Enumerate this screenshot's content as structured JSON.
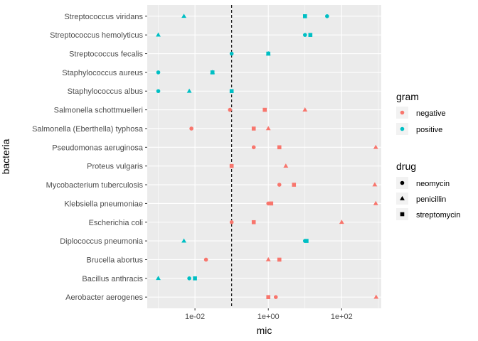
{
  "chart_data": {
    "type": "scatter",
    "title": "",
    "xlabel": "mic",
    "ylabel": "bacteria",
    "x_scale": "log10",
    "xlim": [
      0.0005,
      1200
    ],
    "x_ticks": [
      {
        "value": 0.01,
        "label": "1e-02"
      },
      {
        "value": 1,
        "label": "1e+00"
      },
      {
        "value": 100,
        "label": "1e+02"
      }
    ],
    "reference_line": {
      "x": 0.1,
      "style": "dashed"
    },
    "grid": true,
    "panel_color": "#ebebeb",
    "categories": [
      "Aerobacter aerogenes",
      "Bacillus anthracis",
      "Brucella abortus",
      "Diplococcus pneumonia",
      "Escherichia coli",
      "Klebsiella pneumoniae",
      "Mycobacterium tuberculosis",
      "Proteus vulgaris",
      "Pseudomonas aeruginosa",
      "Salmonella (Eberthella) typhosa",
      "Salmonella schottmuelleri",
      "Staphylococcus albus",
      "Staphylococcus aureus",
      "Streptococcus fecalis",
      "Streptococcus hemolyticus",
      "Streptococcus viridans"
    ],
    "points": [
      {
        "bacteria": "Aerobacter aerogenes",
        "gram": "negative",
        "drug": "neomycin",
        "mic": 1.6
      },
      {
        "bacteria": "Aerobacter aerogenes",
        "gram": "negative",
        "drug": "penicillin",
        "mic": 870
      },
      {
        "bacteria": "Aerobacter aerogenes",
        "gram": "negative",
        "drug": "streptomycin",
        "mic": 1
      },
      {
        "bacteria": "Bacillus anthracis",
        "gram": "positive",
        "drug": "neomycin",
        "mic": 0.007
      },
      {
        "bacteria": "Bacillus anthracis",
        "gram": "positive",
        "drug": "penicillin",
        "mic": 0.001
      },
      {
        "bacteria": "Bacillus anthracis",
        "gram": "positive",
        "drug": "streptomycin",
        "mic": 0.01
      },
      {
        "bacteria": "Brucella abortus",
        "gram": "negative",
        "drug": "neomycin",
        "mic": 0.02
      },
      {
        "bacteria": "Brucella abortus",
        "gram": "negative",
        "drug": "penicillin",
        "mic": 1
      },
      {
        "bacteria": "Brucella abortus",
        "gram": "negative",
        "drug": "streptomycin",
        "mic": 2
      },
      {
        "bacteria": "Diplococcus pneumonia",
        "gram": "positive",
        "drug": "neomycin",
        "mic": 10
      },
      {
        "bacteria": "Diplococcus pneumonia",
        "gram": "positive",
        "drug": "penicillin",
        "mic": 0.005
      },
      {
        "bacteria": "Diplococcus pneumonia",
        "gram": "positive",
        "drug": "streptomycin",
        "mic": 11
      },
      {
        "bacteria": "Escherichia coli",
        "gram": "negative",
        "drug": "neomycin",
        "mic": 0.1
      },
      {
        "bacteria": "Escherichia coli",
        "gram": "negative",
        "drug": "penicillin",
        "mic": 100
      },
      {
        "bacteria": "Escherichia coli",
        "gram": "negative",
        "drug": "streptomycin",
        "mic": 0.4
      },
      {
        "bacteria": "Klebsiella pneumoniae",
        "gram": "negative",
        "drug": "neomycin",
        "mic": 1
      },
      {
        "bacteria": "Klebsiella pneumoniae",
        "gram": "negative",
        "drug": "penicillin",
        "mic": 850
      },
      {
        "bacteria": "Klebsiella pneumoniae",
        "gram": "negative",
        "drug": "streptomycin",
        "mic": 1.2
      },
      {
        "bacteria": "Mycobacterium tuberculosis",
        "gram": "negative",
        "drug": "neomycin",
        "mic": 2
      },
      {
        "bacteria": "Mycobacterium tuberculosis",
        "gram": "negative",
        "drug": "penicillin",
        "mic": 800
      },
      {
        "bacteria": "Mycobacterium tuberculosis",
        "gram": "negative",
        "drug": "streptomycin",
        "mic": 5
      },
      {
        "bacteria": "Proteus vulgaris",
        "gram": "negative",
        "drug": "neomycin",
        "mic": 0.1
      },
      {
        "bacteria": "Proteus vulgaris",
        "gram": "negative",
        "drug": "penicillin",
        "mic": 3
      },
      {
        "bacteria": "Proteus vulgaris",
        "gram": "negative",
        "drug": "streptomycin",
        "mic": 0.1
      },
      {
        "bacteria": "Pseudomonas aeruginosa",
        "gram": "negative",
        "drug": "neomycin",
        "mic": 0.4
      },
      {
        "bacteria": "Pseudomonas aeruginosa",
        "gram": "negative",
        "drug": "penicillin",
        "mic": 850
      },
      {
        "bacteria": "Pseudomonas aeruginosa",
        "gram": "negative",
        "drug": "streptomycin",
        "mic": 2
      },
      {
        "bacteria": "Salmonella (Eberthella) typhosa",
        "gram": "negative",
        "drug": "neomycin",
        "mic": 0.008
      },
      {
        "bacteria": "Salmonella (Eberthella) typhosa",
        "gram": "negative",
        "drug": "penicillin",
        "mic": 1
      },
      {
        "bacteria": "Salmonella (Eberthella) typhosa",
        "gram": "negative",
        "drug": "streptomycin",
        "mic": 0.4
      },
      {
        "bacteria": "Salmonella schottmuelleri",
        "gram": "negative",
        "drug": "neomycin",
        "mic": 0.09
      },
      {
        "bacteria": "Salmonella schottmuelleri",
        "gram": "negative",
        "drug": "penicillin",
        "mic": 10
      },
      {
        "bacteria": "Salmonella schottmuelleri",
        "gram": "negative",
        "drug": "streptomycin",
        "mic": 0.8
      },
      {
        "bacteria": "Staphylococcus albus",
        "gram": "positive",
        "drug": "neomycin",
        "mic": 0.001
      },
      {
        "bacteria": "Staphylococcus albus",
        "gram": "positive",
        "drug": "penicillin",
        "mic": 0.007
      },
      {
        "bacteria": "Staphylococcus albus",
        "gram": "positive",
        "drug": "streptomycin",
        "mic": 0.1
      },
      {
        "bacteria": "Staphylococcus aureus",
        "gram": "positive",
        "drug": "neomycin",
        "mic": 0.001
      },
      {
        "bacteria": "Staphylococcus aureus",
        "gram": "positive",
        "drug": "penicillin",
        "mic": 0.03
      },
      {
        "bacteria": "Staphylococcus aureus",
        "gram": "positive",
        "drug": "streptomycin",
        "mic": 0.03
      },
      {
        "bacteria": "Streptococcus fecalis",
        "gram": "positive",
        "drug": "neomycin",
        "mic": 0.1
      },
      {
        "bacteria": "Streptococcus fecalis",
        "gram": "positive",
        "drug": "penicillin",
        "mic": 1
      },
      {
        "bacteria": "Streptococcus fecalis",
        "gram": "positive",
        "drug": "streptomycin",
        "mic": 1
      },
      {
        "bacteria": "Streptococcus hemolyticus",
        "gram": "positive",
        "drug": "neomycin",
        "mic": 10
      },
      {
        "bacteria": "Streptococcus hemolyticus",
        "gram": "positive",
        "drug": "penicillin",
        "mic": 0.001
      },
      {
        "bacteria": "Streptococcus hemolyticus",
        "gram": "positive",
        "drug": "streptomycin",
        "mic": 14
      },
      {
        "bacteria": "Streptococcus viridans",
        "gram": "positive",
        "drug": "neomycin",
        "mic": 40
      },
      {
        "bacteria": "Streptococcus viridans",
        "gram": "positive",
        "drug": "penicillin",
        "mic": 0.005
      },
      {
        "bacteria": "Streptococcus viridans",
        "gram": "positive",
        "drug": "streptomycin",
        "mic": 10
      }
    ],
    "legends": {
      "color": {
        "title": "gram",
        "entries": [
          {
            "label": "negative",
            "color": "#f8766d"
          },
          {
            "label": "positive",
            "color": "#00bfc4"
          }
        ]
      },
      "shape": {
        "title": "drug",
        "entries": [
          {
            "label": "neomycin",
            "shape": "circle"
          },
          {
            "label": "penicillin",
            "shape": "triangle"
          },
          {
            "label": "streptomycin",
            "shape": "square"
          }
        ]
      }
    },
    "legend_position": "right"
  }
}
